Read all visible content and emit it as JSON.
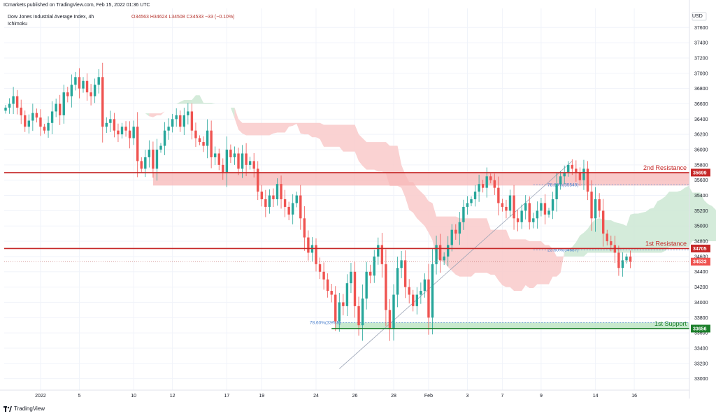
{
  "header": {
    "published": "ICmarkets published on TradingView.com, Feb 15, 2022 01:36 UTC",
    "symbol": "Dow Jones Industrial Average Index, 4h",
    "indicator": "Ichimoku",
    "ohlc": "O34563  H34624  L34508  C34533  −33 (−0.10%)"
  },
  "brand": {
    "name": "TradingView",
    "logo": "tradingview-logo-icon"
  },
  "colors": {
    "up": "#26a69a",
    "down": "#ef5350",
    "resistance": "#c62828",
    "support": "#1b7f2a",
    "resistance_zone": "#f7b7b7",
    "support_zone": "#b9e3c1",
    "cloud_green": "#cde8d3",
    "cloud_red": "#f9caca"
  },
  "chart_data": {
    "type": "candlestick",
    "currency": "USD",
    "ylim": [
      32850,
      37850
    ],
    "y_ticks": [
      33000,
      33200,
      33400,
      33600,
      33800,
      34000,
      34200,
      34400,
      34600,
      34800,
      35000,
      35200,
      35400,
      35600,
      35800,
      36000,
      36200,
      36400,
      36600,
      36800,
      37000,
      37200,
      37400,
      37600
    ],
    "x_ticks": [
      {
        "label": "2022",
        "i": 9
      },
      {
        "label": "5",
        "i": 19
      },
      {
        "label": "10",
        "i": 33
      },
      {
        "label": "12",
        "i": 43
      },
      {
        "label": "17",
        "i": 57
      },
      {
        "label": "19",
        "i": 66
      },
      {
        "label": "24",
        "i": 80
      },
      {
        "label": "26",
        "i": 90
      },
      {
        "label": "28",
        "i": 100
      },
      {
        "label": "Feb",
        "i": 109
      },
      {
        "label": "3",
        "i": 119
      },
      {
        "label": "7",
        "i": 128
      },
      {
        "label": "9",
        "i": 138
      },
      {
        "label": "14",
        "i": 152
      },
      {
        "label": "16",
        "i": 162
      }
    ],
    "closes": [
      36550,
      36600,
      36700,
      36550,
      36450,
      36300,
      36380,
      36480,
      36420,
      36300,
      36250,
      36350,
      36500,
      36600,
      36450,
      36750,
      36700,
      36850,
      36950,
      36800,
      36900,
      36750,
      36700,
      36850,
      36950,
      36300,
      36350,
      36400,
      36250,
      36200,
      36300,
      36250,
      36150,
      36300,
      35850,
      35750,
      35900,
      36000,
      35750,
      36000,
      36050,
      36250,
      36300,
      36400,
      36450,
      36300,
      36450,
      36500,
      36250,
      36150,
      36100,
      36050,
      36250,
      35900,
      35950,
      35800,
      35700,
      36000,
      35900,
      35950,
      35750,
      35950,
      35800,
      35850,
      35750,
      35450,
      35350,
      35250,
      35400,
      35350,
      35550,
      35350,
      35250,
      35150,
      35300,
      35400,
      35100,
      34850,
      34650,
      34750,
      34500,
      34400,
      34300,
      34150,
      34100,
      33750,
      34000,
      33950,
      34250,
      34400,
      33950,
      33700,
      34050,
      34400,
      34350,
      34600,
      34750,
      34500,
      33900,
      33650,
      34100,
      34450,
      34550,
      34200,
      34100,
      33950,
      34100,
      34150,
      34300,
      33800,
      34500,
      34750,
      34550,
      34600,
      34750,
      34950,
      34900,
      35050,
      35250,
      35300,
      35350,
      35450,
      35550,
      35500,
      35650,
      35600,
      35500,
      35300,
      35250,
      35200,
      35400,
      35100,
      35050,
      35200,
      35300,
      35050,
      35100,
      35200,
      35300,
      35150,
      35200,
      35350,
      35550,
      35650,
      35700,
      35800,
      35750,
      35700,
      35600,
      35750,
      35450,
      35100,
      35350,
      35200,
      34900,
      34800,
      34750,
      34650,
      34450,
      34550,
      34600,
      34533
    ],
    "levels": [
      {
        "label": "2nd Resistance",
        "value": 35699,
        "tag": "35699"
      },
      {
        "label": "1st Resistance",
        "value": 34705,
        "tag": "34705"
      },
      {
        "label": "1st Support",
        "value": 33656,
        "tag": "33656"
      }
    ],
    "current_price": {
      "value": 34533,
      "tag": "34533"
    },
    "fib_labels": [
      {
        "label": "78.60%(35540)",
        "value": 35540
      },
      {
        "label": "23.60%(34687)",
        "value": 34687
      },
      {
        "label": "78.60%(33735)",
        "value": 33735
      }
    ]
  }
}
